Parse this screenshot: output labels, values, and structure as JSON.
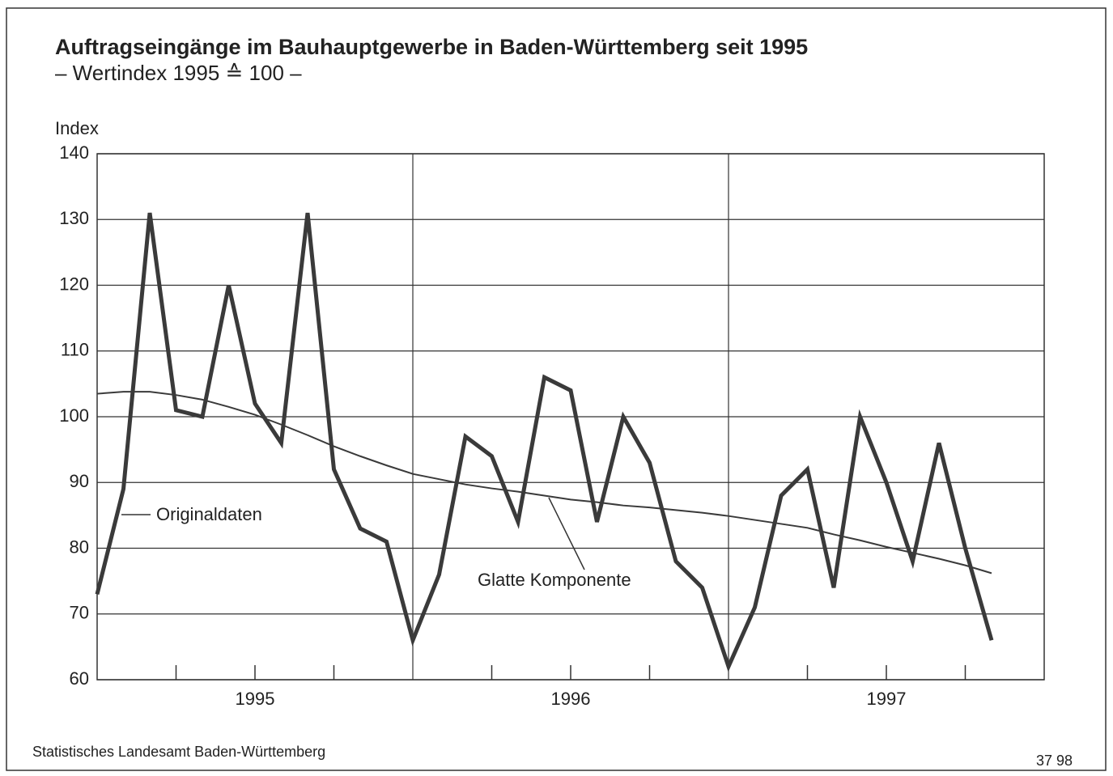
{
  "chart_data": {
    "type": "line",
    "title": "Auftragseingänge im Bauhauptgewerbe in Baden-Württemberg seit 1995",
    "subtitle": "– Wertindex 1995 ≙ 100 –",
    "y_label": "Index",
    "source": "Statistisches Landesamt Baden-Württemberg",
    "code": "37 98",
    "x": [
      1995,
      1995.0833,
      1995.1667,
      1995.25,
      1995.3333,
      1995.4167,
      1995.5,
      1995.5833,
      1995.6667,
      1995.75,
      1995.8333,
      1995.9167,
      1996,
      1996.0833,
      1996.1667,
      1996.25,
      1996.3333,
      1996.4167,
      1996.5,
      1996.5833,
      1996.6667,
      1996.75,
      1996.8333,
      1996.9167,
      1997,
      1997.0833,
      1997.1667,
      1997.25,
      1997.3333,
      1997.4167,
      1997.5,
      1997.5833,
      1997.6667,
      1997.75,
      1997.8333
    ],
    "series": [
      {
        "name": "Originaldaten",
        "color": "#3a3a3a",
        "values": [
          73,
          89,
          131,
          101,
          100,
          120,
          102,
          96,
          131,
          92,
          83,
          81,
          66,
          76,
          97,
          94,
          84,
          106,
          104,
          84,
          100,
          93,
          78,
          74,
          62,
          71,
          88,
          92,
          74,
          100,
          90,
          78,
          96,
          80,
          66
        ]
      },
      {
        "name": "Glatte Komponente",
        "color": "#3a3a3a",
        "values": [
          103.5,
          103.8,
          103.8,
          103.3,
          102.6,
          101.5,
          100.3,
          98.8,
          97.2,
          95.5,
          94,
          92.6,
          91.3,
          90.5,
          89.7,
          89.1,
          88.6,
          88,
          87.4,
          87,
          86.5,
          86.2,
          85.8,
          85.4,
          84.9,
          84.3,
          83.7,
          83.1,
          82.1,
          81.2,
          80.2,
          79.3,
          78.4,
          77.4,
          76.2
        ]
      }
    ],
    "xlim": [
      1995,
      1998
    ],
    "xticks": [
      {
        "value": 1995.5,
        "label": "1995"
      },
      {
        "value": 1996.5,
        "label": "1996"
      },
      {
        "value": 1997.5,
        "label": "1997"
      }
    ],
    "x_minor_ticks": [
      1995.25,
      1995.75,
      1996.25,
      1996.75,
      1997.25,
      1997.75
    ],
    "x_grid": [
      1996,
      1997
    ],
    "ylim": [
      60,
      140
    ],
    "yticks": [
      60,
      70,
      80,
      90,
      100,
      110,
      120,
      130,
      140
    ],
    "grid": true
  }
}
